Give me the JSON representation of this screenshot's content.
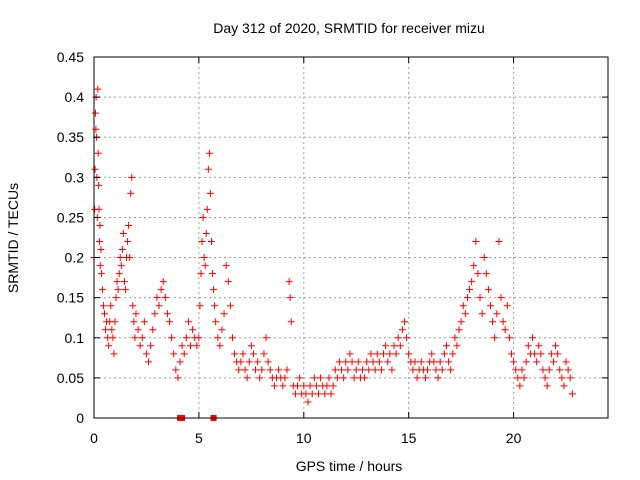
{
  "chart_data": {
    "type": "scatter",
    "title": "Day 312 of 2020, SRMTID for receiver mizu",
    "xlabel": "GPS time / hours",
    "ylabel": "SRMTID / TECUs",
    "xlim": [
      0,
      24.5
    ],
    "ylim": [
      0,
      0.45
    ],
    "xticks": [
      0,
      5,
      10,
      15,
      20
    ],
    "xtick_labels": [
      "0",
      "5",
      "10",
      "15",
      "20"
    ],
    "yticks": [
      0,
      0.05,
      0.1,
      0.15,
      0.2,
      0.25,
      0.3,
      0.35,
      0.4,
      0.45
    ],
    "ytick_labels": [
      "0",
      "0.05",
      "0.1",
      "0.15",
      "0.2",
      "0.25",
      "0.3",
      "0.35",
      "0.4",
      "0.45"
    ],
    "grid": true,
    "marker": "+",
    "series": [
      {
        "name": "SRMTID",
        "color": "#ff0000",
        "points": [
          [
            0.0,
            0.2
          ],
          [
            0.03,
            0.26
          ],
          [
            0.05,
            0.31
          ],
          [
            0.07,
            0.38
          ],
          [
            0.09,
            0.36
          ],
          [
            0.1,
            0.4
          ],
          [
            0.12,
            0.35
          ],
          [
            0.14,
            0.3
          ],
          [
            0.16,
            0.25
          ],
          [
            0.18,
            0.41
          ],
          [
            0.2,
            0.33
          ],
          [
            0.22,
            0.29
          ],
          [
            0.24,
            0.26
          ],
          [
            0.26,
            0.22
          ],
          [
            0.28,
            0.24
          ],
          [
            0.3,
            0.19
          ],
          [
            0.33,
            0.21
          ],
          [
            0.36,
            0.18
          ],
          [
            0.4,
            0.16
          ],
          [
            0.45,
            0.14
          ],
          [
            0.5,
            0.13
          ],
          [
            0.55,
            0.11
          ],
          [
            0.6,
            0.12
          ],
          [
            0.65,
            0.1
          ],
          [
            0.7,
            0.09
          ],
          [
            0.75,
            0.12
          ],
          [
            0.8,
            0.14
          ],
          [
            0.85,
            0.11
          ],
          [
            0.9,
            0.1
          ],
          [
            0.95,
            0.08
          ],
          [
            1.0,
            0.12
          ],
          [
            1.05,
            0.15
          ],
          [
            1.1,
            0.17
          ],
          [
            1.15,
            0.16
          ],
          [
            1.2,
            0.18
          ],
          [
            1.25,
            0.2
          ],
          [
            1.3,
            0.19
          ],
          [
            1.35,
            0.21
          ],
          [
            1.4,
            0.23
          ],
          [
            1.45,
            0.17
          ],
          [
            1.5,
            0.16
          ],
          [
            1.55,
            0.2
          ],
          [
            1.6,
            0.22
          ],
          [
            1.65,
            0.24
          ],
          [
            1.7,
            0.2
          ],
          [
            1.75,
            0.28
          ],
          [
            1.8,
            0.3
          ],
          [
            1.85,
            0.14
          ],
          [
            1.9,
            0.12
          ],
          [
            1.95,
            0.1
          ],
          [
            2.0,
            0.13
          ],
          [
            2.1,
            0.11
          ],
          [
            2.2,
            0.09
          ],
          [
            2.3,
            0.1
          ],
          [
            2.4,
            0.12
          ],
          [
            2.5,
            0.08
          ],
          [
            2.6,
            0.07
          ],
          [
            2.7,
            0.09
          ],
          [
            2.8,
            0.11
          ],
          [
            2.9,
            0.13
          ],
          [
            3.0,
            0.15
          ],
          [
            3.1,
            0.14
          ],
          [
            3.2,
            0.16
          ],
          [
            3.3,
            0.17
          ],
          [
            3.4,
            0.15
          ],
          [
            3.5,
            0.13
          ],
          [
            3.6,
            0.12
          ],
          [
            3.7,
            0.1
          ],
          [
            3.8,
            0.08
          ],
          [
            3.9,
            0.06
          ],
          [
            4.0,
            0.05
          ],
          [
            4.1,
            0.07
          ],
          [
            4.2,
            0.09
          ],
          [
            4.3,
            0.08
          ],
          [
            4.4,
            0.1
          ],
          [
            4.5,
            0.12
          ],
          [
            4.6,
            0.09
          ],
          [
            4.7,
            0.11
          ],
          [
            4.8,
            0.1
          ],
          [
            4.9,
            0.09
          ],
          [
            5.0,
            0.1
          ],
          [
            5.05,
            0.14
          ],
          [
            5.1,
            0.18
          ],
          [
            5.15,
            0.22
          ],
          [
            5.2,
            0.25
          ],
          [
            5.25,
            0.2
          ],
          [
            5.3,
            0.19
          ],
          [
            5.35,
            0.23
          ],
          [
            5.4,
            0.26
          ],
          [
            5.45,
            0.31
          ],
          [
            5.5,
            0.33
          ],
          [
            5.55,
            0.28
          ],
          [
            5.6,
            0.22
          ],
          [
            5.65,
            0.18
          ],
          [
            5.7,
            0.16
          ],
          [
            5.75,
            0.14
          ],
          [
            5.8,
            0.12
          ],
          [
            5.9,
            0.1
          ],
          [
            6.0,
            0.09
          ],
          [
            6.1,
            0.11
          ],
          [
            6.2,
            0.13
          ],
          [
            6.3,
            0.19
          ],
          [
            6.4,
            0.17
          ],
          [
            6.5,
            0.14
          ],
          [
            6.6,
            0.1
          ],
          [
            6.7,
            0.08
          ],
          [
            6.8,
            0.07
          ],
          [
            6.9,
            0.06
          ],
          [
            7.0,
            0.07
          ],
          [
            7.1,
            0.08
          ],
          [
            7.2,
            0.06
          ],
          [
            7.3,
            0.05
          ],
          [
            7.4,
            0.07
          ],
          [
            7.5,
            0.09
          ],
          [
            7.6,
            0.08
          ],
          [
            7.7,
            0.06
          ],
          [
            7.8,
            0.07
          ],
          [
            7.9,
            0.05
          ],
          [
            8.0,
            0.06
          ],
          [
            8.1,
            0.08
          ],
          [
            8.2,
            0.1
          ],
          [
            8.3,
            0.07
          ],
          [
            8.4,
            0.06
          ],
          [
            8.5,
            0.05
          ],
          [
            8.6,
            0.04
          ],
          [
            8.7,
            0.05
          ],
          [
            8.8,
            0.06
          ],
          [
            8.9,
            0.05
          ],
          [
            9.0,
            0.04
          ],
          [
            9.1,
            0.05
          ],
          [
            9.2,
            0.06
          ],
          [
            9.3,
            0.17
          ],
          [
            9.35,
            0.15
          ],
          [
            9.4,
            0.12
          ],
          [
            9.5,
            0.04
          ],
          [
            9.6,
            0.03
          ],
          [
            9.7,
            0.04
          ],
          [
            9.8,
            0.05
          ],
          [
            9.9,
            0.03
          ],
          [
            10.0,
            0.04
          ],
          [
            10.1,
            0.03
          ],
          [
            10.2,
            0.02
          ],
          [
            10.3,
            0.04
          ],
          [
            10.4,
            0.03
          ],
          [
            10.5,
            0.05
          ],
          [
            10.6,
            0.04
          ],
          [
            10.7,
            0.03
          ],
          [
            10.8,
            0.05
          ],
          [
            10.9,
            0.04
          ],
          [
            11.0,
            0.03
          ],
          [
            11.1,
            0.04
          ],
          [
            11.2,
            0.05
          ],
          [
            11.3,
            0.03
          ],
          [
            11.4,
            0.04
          ],
          [
            11.5,
            0.06
          ],
          [
            11.6,
            0.05
          ],
          [
            11.7,
            0.07
          ],
          [
            11.8,
            0.06
          ],
          [
            11.9,
            0.05
          ],
          [
            12.0,
            0.07
          ],
          [
            12.1,
            0.06
          ],
          [
            12.2,
            0.08
          ],
          [
            12.3,
            0.07
          ],
          [
            12.4,
            0.05
          ],
          [
            12.5,
            0.06
          ],
          [
            12.6,
            0.07
          ],
          [
            12.7,
            0.05
          ],
          [
            12.8,
            0.06
          ],
          [
            12.9,
            0.05
          ],
          [
            13.0,
            0.07
          ],
          [
            13.1,
            0.06
          ],
          [
            13.2,
            0.08
          ],
          [
            13.3,
            0.07
          ],
          [
            13.4,
            0.06
          ],
          [
            13.5,
            0.08
          ],
          [
            13.6,
            0.07
          ],
          [
            13.7,
            0.06
          ],
          [
            13.8,
            0.08
          ],
          [
            13.9,
            0.09
          ],
          [
            14.0,
            0.07
          ],
          [
            14.1,
            0.08
          ],
          [
            14.2,
            0.06
          ],
          [
            14.3,
            0.09
          ],
          [
            14.4,
            0.08
          ],
          [
            14.5,
            0.1
          ],
          [
            14.6,
            0.09
          ],
          [
            14.7,
            0.11
          ],
          [
            14.8,
            0.12
          ],
          [
            14.9,
            0.1
          ],
          [
            15.0,
            0.08
          ],
          [
            15.1,
            0.07
          ],
          [
            15.2,
            0.06
          ],
          [
            15.3,
            0.07
          ],
          [
            15.4,
            0.05
          ],
          [
            15.5,
            0.06
          ],
          [
            15.6,
            0.07
          ],
          [
            15.7,
            0.06
          ],
          [
            15.8,
            0.05
          ],
          [
            15.9,
            0.06
          ],
          [
            16.0,
            0.07
          ],
          [
            16.1,
            0.08
          ],
          [
            16.2,
            0.07
          ],
          [
            16.3,
            0.06
          ],
          [
            16.4,
            0.05
          ],
          [
            16.5,
            0.07
          ],
          [
            16.6,
            0.06
          ],
          [
            16.7,
            0.08
          ],
          [
            16.8,
            0.09
          ],
          [
            16.9,
            0.07
          ],
          [
            17.0,
            0.06
          ],
          [
            17.1,
            0.08
          ],
          [
            17.2,
            0.1
          ],
          [
            17.3,
            0.09
          ],
          [
            17.4,
            0.11
          ],
          [
            17.5,
            0.12
          ],
          [
            17.6,
            0.14
          ],
          [
            17.7,
            0.13
          ],
          [
            17.8,
            0.15
          ],
          [
            17.9,
            0.16
          ],
          [
            18.0,
            0.17
          ],
          [
            18.1,
            0.19
          ],
          [
            18.2,
            0.22
          ],
          [
            18.3,
            0.18
          ],
          [
            18.4,
            0.15
          ],
          [
            18.5,
            0.13
          ],
          [
            18.6,
            0.2
          ],
          [
            18.7,
            0.18
          ],
          [
            18.8,
            0.16
          ],
          [
            18.9,
            0.14
          ],
          [
            19.0,
            0.12
          ],
          [
            19.1,
            0.1
          ],
          [
            19.2,
            0.13
          ],
          [
            19.3,
            0.22
          ],
          [
            19.4,
            0.15
          ],
          [
            19.5,
            0.12
          ],
          [
            19.6,
            0.11
          ],
          [
            19.7,
            0.14
          ],
          [
            19.8,
            0.1
          ],
          [
            19.9,
            0.08
          ],
          [
            20.0,
            0.07
          ],
          [
            20.1,
            0.06
          ],
          [
            20.2,
            0.05
          ],
          [
            20.3,
            0.04
          ],
          [
            20.4,
            0.06
          ],
          [
            20.5,
            0.05
          ],
          [
            20.6,
            0.07
          ],
          [
            20.7,
            0.09
          ],
          [
            20.8,
            0.08
          ],
          [
            20.9,
            0.1
          ],
          [
            21.0,
            0.08
          ],
          [
            21.1,
            0.07
          ],
          [
            21.2,
            0.09
          ],
          [
            21.3,
            0.08
          ],
          [
            21.4,
            0.06
          ],
          [
            21.5,
            0.05
          ],
          [
            21.6,
            0.04
          ],
          [
            21.7,
            0.06
          ],
          [
            21.8,
            0.08
          ],
          [
            21.9,
            0.07
          ],
          [
            22.0,
            0.09
          ],
          [
            22.1,
            0.08
          ],
          [
            22.2,
            0.06
          ],
          [
            22.3,
            0.05
          ],
          [
            22.4,
            0.04
          ],
          [
            22.5,
            0.07
          ],
          [
            22.6,
            0.06
          ],
          [
            22.7,
            0.05
          ],
          [
            22.8,
            0.03
          ]
        ]
      }
    ],
    "markers_at_zero": [
      4.1,
      4.2,
      5.7
    ]
  }
}
